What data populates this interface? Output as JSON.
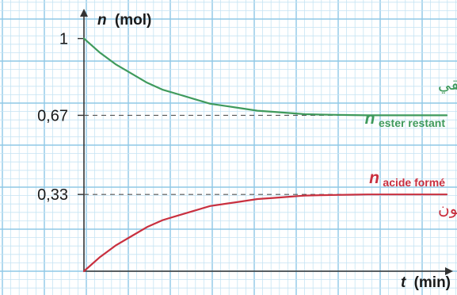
{
  "chart_data": {
    "type": "line",
    "title": "",
    "xlabel_var": "t",
    "xlabel_unit": "(min)",
    "ylabel_var": "n",
    "ylabel_unit": "(mol)",
    "grid": true,
    "xlim": [
      0,
      46
    ],
    "ylim": [
      0,
      1.06
    ],
    "y_ticks": [
      {
        "value": 1,
        "label": "1"
      },
      {
        "value": 0.67,
        "label": "0,67"
      },
      {
        "value": 0.33,
        "label": "0,33"
      }
    ],
    "series": [
      {
        "name_arabic": "الإستر المتبقي",
        "label_var": "n",
        "label_sub": "ester restant",
        "color": "#3f9a5c",
        "x": [
          0,
          2,
          4,
          6,
          8,
          10,
          12,
          14,
          16,
          18,
          20,
          22,
          24,
          26,
          28,
          30,
          32,
          34,
          36,
          38,
          40,
          42,
          44,
          46
        ],
        "y": [
          1.0,
          0.94,
          0.89,
          0.85,
          0.81,
          0.78,
          0.76,
          0.74,
          0.72,
          0.71,
          0.7,
          0.69,
          0.685,
          0.68,
          0.675,
          0.673,
          0.672,
          0.671,
          0.67,
          0.67,
          0.67,
          0.67,
          0.67,
          0.67
        ]
      },
      {
        "name_arabic": "الحمض المتكون",
        "label_var": "n",
        "label_sub": "acide formé",
        "color": "#c9303f",
        "x": [
          0,
          2,
          4,
          6,
          8,
          10,
          12,
          14,
          16,
          18,
          20,
          22,
          24,
          26,
          28,
          30,
          32,
          34,
          36,
          38,
          40,
          42,
          44,
          46
        ],
        "y": [
          0.0,
          0.06,
          0.11,
          0.15,
          0.19,
          0.22,
          0.24,
          0.26,
          0.28,
          0.29,
          0.3,
          0.31,
          0.315,
          0.32,
          0.325,
          0.327,
          0.328,
          0.329,
          0.33,
          0.33,
          0.33,
          0.33,
          0.33,
          0.33
        ]
      }
    ]
  }
}
